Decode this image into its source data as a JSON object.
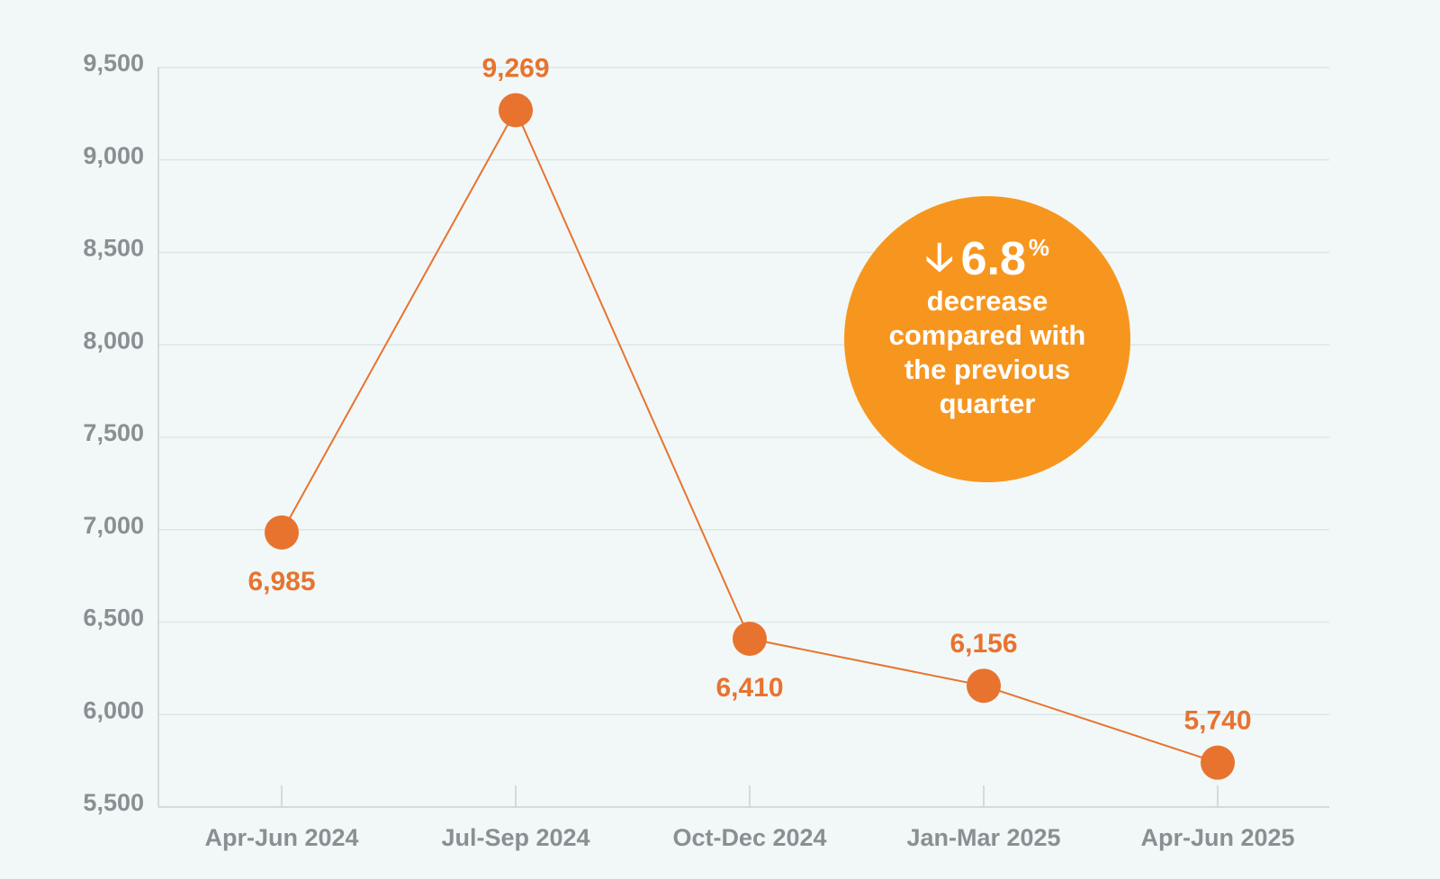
{
  "chart_data": {
    "type": "line",
    "categories": [
      "Apr-Jun 2024",
      "Jul-Sep 2024",
      "Oct-Dec 2024",
      "Jan-Mar 2025",
      "Apr-Jun 2025"
    ],
    "values": [
      6985,
      9269,
      6410,
      6156,
      5740
    ],
    "data_labels": [
      "6,985",
      "9,269",
      "6,410",
      "6,156",
      "5,740"
    ],
    "ylim": [
      5500,
      9500
    ],
    "yticks": [
      9500,
      9000,
      8500,
      8000,
      7500,
      7000,
      6500,
      6000,
      5500
    ],
    "ytick_labels": [
      "9,500",
      "9,000",
      "8,500",
      "8,000",
      "7,500",
      "7,000",
      "6,500",
      "6,000",
      "5,500"
    ],
    "grid": true,
    "line_color": "#e8732f",
    "grid_color": "#d9e4e3"
  },
  "callout": {
    "arrow": "🡣",
    "value": "6.8",
    "unit": "%",
    "text": "decrease compared with the previous quarter",
    "color": "#f7961f"
  }
}
